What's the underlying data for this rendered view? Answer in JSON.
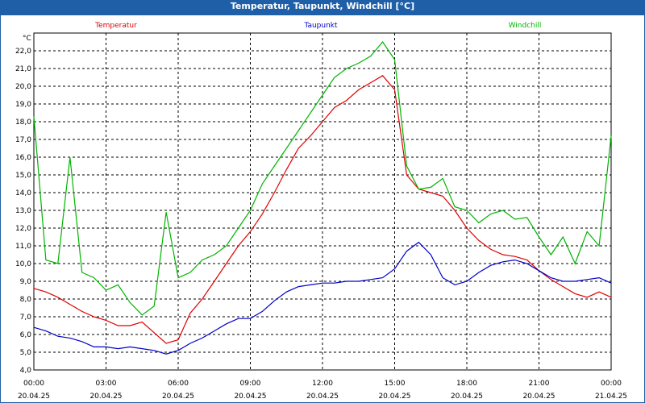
{
  "window": {
    "title": "Temperatur, Taupunkt, Windchill [°C]"
  },
  "chart_data": {
    "type": "line",
    "title": "Temperatur, Taupunkt, Windchill [°C]",
    "ylabel": "°C",
    "ylim": [
      4.0,
      23.0
    ],
    "y_ticks": [
      "4,0",
      "5,0",
      "6,0",
      "7,0",
      "8,0",
      "9,0",
      "10,0",
      "11,0",
      "12,0",
      "13,0",
      "14,0",
      "15,0",
      "16,0",
      "17,0",
      "18,0",
      "19,0",
      "20,0",
      "21,0",
      "22,0"
    ],
    "x_ticks": [
      {
        "time": "00:00",
        "date": "20.04.25"
      },
      {
        "time": "03:00",
        "date": "20.04.25"
      },
      {
        "time": "06:00",
        "date": "20.04.25"
      },
      {
        "time": "09:00",
        "date": "20.04.25"
      },
      {
        "time": "12:00",
        "date": "20.04.25"
      },
      {
        "time": "15:00",
        "date": "20.04.25"
      },
      {
        "time": "18:00",
        "date": "20.04.25"
      },
      {
        "time": "21:00",
        "date": "20.04.25"
      },
      {
        "time": "00:00",
        "date": "21.04.25"
      }
    ],
    "grid": true,
    "x": [
      "00:00",
      "00:30",
      "01:00",
      "01:30",
      "02:00",
      "02:30",
      "03:00",
      "03:30",
      "04:00",
      "04:30",
      "05:00",
      "05:30",
      "06:00",
      "06:30",
      "07:00",
      "07:30",
      "08:00",
      "08:30",
      "09:00",
      "09:30",
      "10:00",
      "10:30",
      "11:00",
      "11:30",
      "12:00",
      "12:30",
      "13:00",
      "13:30",
      "14:00",
      "14:30",
      "15:00",
      "15:30",
      "16:00",
      "16:30",
      "17:00",
      "17:30",
      "18:00",
      "18:30",
      "19:00",
      "19:30",
      "20:00",
      "20:30",
      "21:00",
      "21:30",
      "22:00",
      "22:30",
      "23:00",
      "23:30",
      "00:00"
    ],
    "series": [
      {
        "name": "Temperatur",
        "color": "#e00000",
        "values": [
          8.6,
          8.4,
          8.1,
          7.7,
          7.3,
          7.0,
          6.8,
          6.5,
          6.5,
          6.7,
          6.1,
          5.5,
          5.7,
          7.2,
          8.0,
          9.0,
          10.0,
          11.0,
          11.8,
          12.8,
          14.0,
          15.3,
          16.5,
          17.2,
          18.0,
          18.8,
          19.2,
          19.8,
          20.2,
          20.6,
          19.8,
          15.0,
          14.2,
          14.0,
          13.8,
          13.0,
          12.0,
          11.3,
          10.8,
          10.5,
          10.4,
          10.2,
          9.6,
          9.1,
          8.7,
          8.3,
          8.1,
          8.4,
          8.1
        ]
      },
      {
        "name": "Taupunkt",
        "color": "#0000c8",
        "values": [
          6.4,
          6.2,
          5.9,
          5.8,
          5.6,
          5.3,
          5.3,
          5.2,
          5.3,
          5.2,
          5.1,
          4.9,
          5.1,
          5.5,
          5.8,
          6.2,
          6.6,
          6.9,
          6.9,
          7.3,
          7.9,
          8.4,
          8.7,
          8.8,
          8.9,
          8.9,
          9.0,
          9.0,
          9.1,
          9.2,
          9.7,
          10.7,
          11.2,
          10.5,
          9.2,
          8.8,
          9.0,
          9.5,
          9.9,
          10.1,
          10.2,
          10.0,
          9.6,
          9.2,
          9.0,
          9.0,
          9.1,
          9.2,
          8.9
        ]
      },
      {
        "name": "Windchill",
        "color": "#00b400",
        "values": [
          18.3,
          10.2,
          10.0,
          16.0,
          9.5,
          9.2,
          8.5,
          8.8,
          7.8,
          7.1,
          7.6,
          12.9,
          9.2,
          9.5,
          10.2,
          10.5,
          11.0,
          12.0,
          13.0,
          14.5,
          15.5,
          16.5,
          17.5,
          18.5,
          19.5,
          20.5,
          21.0,
          21.3,
          21.7,
          22.5,
          21.5,
          15.5,
          14.2,
          14.3,
          14.8,
          13.2,
          13.0,
          12.3,
          12.8,
          13.0,
          12.5,
          12.6,
          11.5,
          10.5,
          11.5,
          10.0,
          11.8,
          11.0,
          17.2
        ]
      }
    ]
  }
}
